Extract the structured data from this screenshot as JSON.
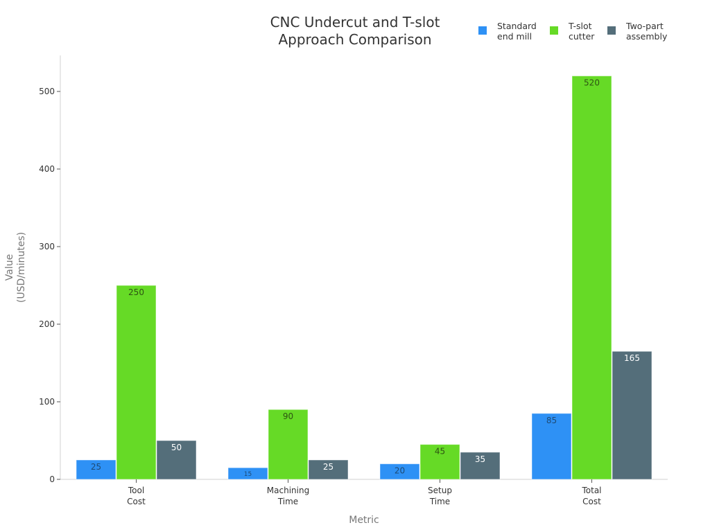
{
  "chart_data": {
    "type": "bar",
    "title": "CNC Undercut and T-slot\nApproach Comparison",
    "xlabel": "Metric",
    "ylabel": "Value\n(USD/minutes)",
    "categories": [
      "Tool\nCost",
      "Machining\nTime",
      "Setup\nTime",
      "Total\nCost"
    ],
    "series": [
      {
        "name": "Standard\nend mill",
        "color": "#2e91f5",
        "values": [
          25,
          15,
          20,
          85
        ]
      },
      {
        "name": "T-slot\ncutter",
        "color": "#66da26",
        "values": [
          250,
          90,
          45,
          520
        ]
      },
      {
        "name": "Two-part\nassembly",
        "color": "#546e7a",
        "values": [
          50,
          25,
          35,
          165
        ]
      }
    ],
    "ylim": [
      0,
      545
    ],
    "yticks": [
      0,
      100,
      200,
      300,
      400,
      500
    ],
    "grid": false,
    "legend_position": "top-right"
  },
  "title_line1": "CNC Undercut and T-slot",
  "title_line2": "Approach Comparison",
  "legend": [
    {
      "label": "Standard\nend mill",
      "color": "#2e91f5"
    },
    {
      "label": "T-slot\ncutter",
      "color": "#66da26"
    },
    {
      "label": "Two-part\nassembly",
      "color": "#546e7a"
    }
  ]
}
